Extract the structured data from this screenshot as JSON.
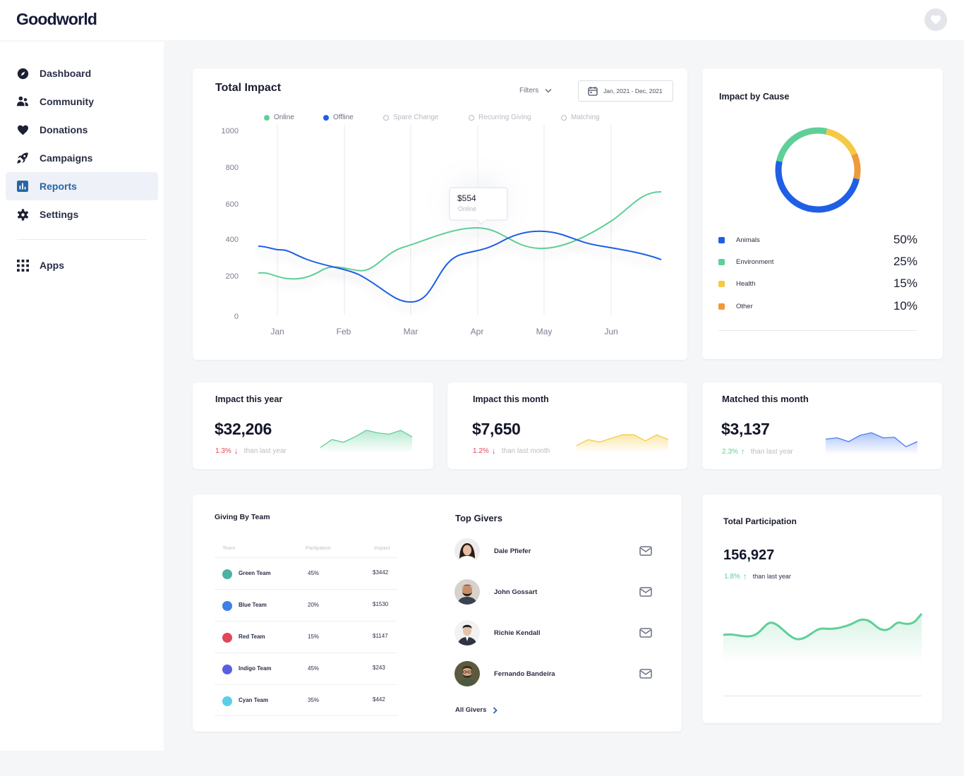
{
  "app": {
    "logo": "Goodworld"
  },
  "sidebar": {
    "items": [
      {
        "label": "Dashboard",
        "icon": "compass-icon"
      },
      {
        "label": "Community",
        "icon": "users-icon"
      },
      {
        "label": "Donations",
        "icon": "heart-icon"
      },
      {
        "label": "Campaigns",
        "icon": "rocket-icon"
      },
      {
        "label": "Reports",
        "icon": "bar-chart-icon",
        "active": true
      },
      {
        "label": "Settings",
        "icon": "gear-icon"
      }
    ],
    "apps": {
      "label": "Apps",
      "icon": "grid-icon"
    }
  },
  "total_impact": {
    "title": "Total Impact",
    "filters_label": "Filters",
    "date_range": "Jan, 2021 - Dec, 2021",
    "legend": [
      {
        "label": "Online",
        "color": "#5fcf98",
        "active": true
      },
      {
        "label": "Offline",
        "color": "#1f5fe6",
        "active": true
      },
      {
        "label": "Spare Change",
        "active": false
      },
      {
        "label": "Recurring Giving",
        "active": false
      },
      {
        "label": "Matching",
        "active": false
      }
    ],
    "tooltip": {
      "value": "$554",
      "label": "Online"
    }
  },
  "impact_by_cause": {
    "title": "Impact by Cause",
    "causes": [
      {
        "name": "Animals",
        "pct": "50%",
        "value": 50,
        "color": "#1f5fe6"
      },
      {
        "name": "Environment",
        "pct": "25%",
        "value": 25,
        "color": "#5fcf98"
      },
      {
        "name": "Health",
        "pct": "15%",
        "value": 15,
        "color": "#f5c944"
      },
      {
        "name": "Other",
        "pct": "10%",
        "value": 10,
        "color": "#ee9a3a"
      }
    ]
  },
  "stats": [
    {
      "title": "Impact this year",
      "value": "$32,206",
      "pct": "1.3%",
      "direction": "down",
      "comparison": "than last year",
      "color": "#5fcf98",
      "spark": [
        0.2,
        0.5,
        0.4,
        0.6,
        0.85,
        0.75,
        0.7,
        0.85,
        0.6
      ]
    },
    {
      "title": "Impact this month",
      "value": "$7,650",
      "pct": "1.2%",
      "direction": "down",
      "comparison": "than last month",
      "color": "#f5c944",
      "spark": [
        0.3,
        0.55,
        0.45,
        0.6,
        0.75,
        0.75,
        0.5,
        0.75,
        0.55
      ]
    },
    {
      "title": "Matched this month",
      "value": "$3,137",
      "pct": "2.3%",
      "direction": "up",
      "comparison": "than last year",
      "color": "#4a7cf0",
      "spark": [
        0.6,
        0.65,
        0.5,
        0.75,
        0.85,
        0.65,
        0.67,
        0.3,
        0.5
      ]
    }
  ],
  "giving_by_team": {
    "title": "Giving By Team",
    "headers": {
      "team": "Team",
      "participation": "Partipation",
      "impact": "Impact"
    },
    "teams": [
      {
        "name": "Green Team",
        "participation": "45%",
        "impact": "$3442",
        "color": "#4cb3a0"
      },
      {
        "name": "Blue Team",
        "participation": "20%",
        "impact": "$1530",
        "color": "#3e7fe8"
      },
      {
        "name": "Red Team",
        "participation": "15%",
        "impact": "$1147",
        "color": "#e0475a"
      },
      {
        "name": "Indigo Team",
        "participation": "45%",
        "impact": "$243",
        "color": "#5a5fe0"
      },
      {
        "name": "Cyan Team",
        "participation": "35%",
        "impact": "$442",
        "color": "#5ccfe8"
      }
    ]
  },
  "top_givers": {
    "title": "Top Givers",
    "givers": [
      {
        "name": "Dale Pfiefer",
        "hair": "#2c1d16",
        "skin": "#e6bfa4",
        "shirt": "#ffffff"
      },
      {
        "name": "John Gossart",
        "hair": "#2a1b12",
        "skin": "#c88e6a",
        "shirt": "#3a4152"
      },
      {
        "name": "Richie Kendall",
        "hair": "#1e1e22",
        "skin": "#e3c3a8",
        "shirt": "#2f3440"
      },
      {
        "name": "Fernando Bandeira",
        "hair": "#3a2a1d",
        "skin": "#d9a783",
        "shirt": "#4a5a40"
      }
    ],
    "all_label": "All Givers"
  },
  "participation": {
    "title": "Total Participation",
    "value": "156,927",
    "pct": "1.8%",
    "comparison": "than last year"
  }
}
